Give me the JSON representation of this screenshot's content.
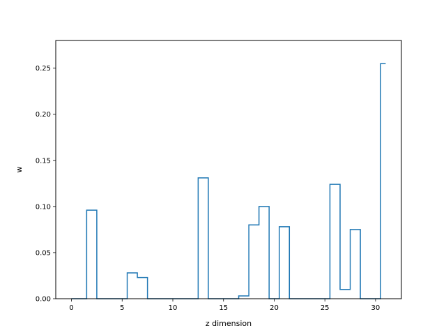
{
  "chart_data": {
    "type": "step",
    "xlabel": "z dimension",
    "ylabel": "w",
    "xlim": [
      -1.55,
      32.55
    ],
    "ylim": [
      0,
      0.28
    ],
    "xticks": [
      0,
      5,
      10,
      15,
      20,
      25,
      30
    ],
    "yticks": [
      0.0,
      0.05,
      0.1,
      0.15,
      0.2,
      0.25
    ],
    "ytick_labels": [
      "0.00",
      "0.05",
      "0.10",
      "0.15",
      "0.20",
      "0.25"
    ],
    "grid": false,
    "x": [
      0,
      1,
      2,
      3,
      4,
      5,
      6,
      7,
      8,
      9,
      10,
      11,
      12,
      13,
      14,
      15,
      16,
      17,
      18,
      19,
      20,
      21,
      22,
      23,
      24,
      25,
      26,
      27,
      28,
      29,
      30,
      31
    ],
    "values": [
      0,
      0,
      0.096,
      0,
      0,
      0,
      0.028,
      0.023,
      0,
      0,
      0,
      0,
      0,
      0.131,
      0,
      0,
      0,
      0.003,
      0.08,
      0.1,
      0,
      0.078,
      0,
      0,
      0,
      0,
      0.124,
      0.01,
      0.075,
      0,
      0,
      0.255
    ],
    "series_color": "#1f77b4"
  }
}
